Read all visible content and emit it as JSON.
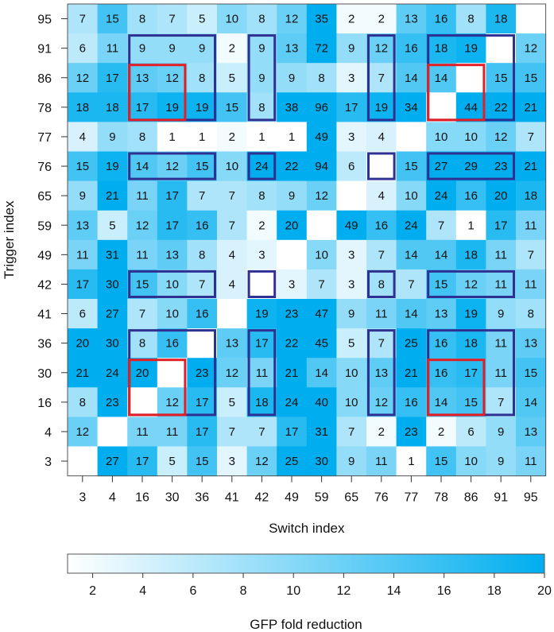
{
  "chart_data": {
    "type": "heatmap",
    "xlabel": "Switch index",
    "ylabel": "Trigger index",
    "x_categories": [
      "3",
      "4",
      "16",
      "30",
      "36",
      "41",
      "42",
      "49",
      "59",
      "65",
      "76",
      "77",
      "78",
      "86",
      "91",
      "95"
    ],
    "y_categories": [
      "95",
      "91",
      "86",
      "78",
      "77",
      "76",
      "65",
      "59",
      "49",
      "42",
      "41",
      "36",
      "30",
      "16",
      "4",
      "3"
    ],
    "values": [
      [
        7,
        15,
        8,
        7,
        5,
        10,
        8,
        12,
        35,
        2,
        2,
        13,
        16,
        8,
        18,
        null
      ],
      [
        6,
        11,
        9,
        9,
        9,
        2,
        9,
        13,
        72,
        9,
        12,
        16,
        18,
        19,
        null,
        12
      ],
      [
        12,
        17,
        13,
        12,
        8,
        5,
        9,
        9,
        8,
        3,
        7,
        14,
        14,
        null,
        15,
        15
      ],
      [
        18,
        18,
        17,
        19,
        19,
        15,
        8,
        38,
        96,
        17,
        19,
        34,
        null,
        44,
        22,
        21
      ],
      [
        4,
        9,
        8,
        1,
        1,
        2,
        1,
        1,
        49,
        3,
        4,
        null,
        10,
        10,
        12,
        7
      ],
      [
        15,
        19,
        14,
        12,
        15,
        10,
        24,
        22,
        94,
        6,
        null,
        15,
        27,
        29,
        23,
        21
      ],
      [
        9,
        21,
        11,
        17,
        7,
        7,
        8,
        9,
        12,
        null,
        4,
        10,
        24,
        16,
        20,
        18
      ],
      [
        13,
        5,
        12,
        17,
        16,
        7,
        2,
        20,
        null,
        49,
        16,
        24,
        7,
        1,
        17,
        11
      ],
      [
        11,
        31,
        11,
        13,
        8,
        4,
        3,
        null,
        10,
        3,
        7,
        14,
        14,
        18,
        11,
        7
      ],
      [
        17,
        30,
        15,
        10,
        7,
        4,
        null,
        3,
        7,
        3,
        8,
        7,
        15,
        12,
        11,
        11
      ],
      [
        6,
        27,
        7,
        10,
        16,
        null,
        19,
        23,
        47,
        9,
        11,
        14,
        13,
        19,
        9,
        8
      ],
      [
        20,
        30,
        8,
        16,
        null,
        13,
        17,
        22,
        45,
        5,
        7,
        25,
        16,
        18,
        11,
        13
      ],
      [
        21,
        24,
        20,
        null,
        23,
        12,
        11,
        21,
        14,
        10,
        13,
        21,
        16,
        17,
        11,
        15
      ],
      [
        8,
        23,
        null,
        12,
        17,
        5,
        18,
        24,
        40,
        10,
        12,
        16,
        14,
        15,
        7,
        14
      ],
      [
        12,
        null,
        11,
        11,
        17,
        7,
        7,
        17,
        31,
        7,
        2,
        23,
        2,
        6,
        9,
        13
      ],
      [
        null,
        27,
        17,
        5,
        15,
        3,
        12,
        25,
        30,
        9,
        11,
        1,
        15,
        10,
        9,
        11
      ]
    ],
    "color_scale": {
      "min": 1,
      "max": 20,
      "low_color": "#ffffff",
      "high_color": "#00aeef"
    },
    "colorbar": {
      "title": "GFP fold reduction",
      "ticks": [
        "2",
        "4",
        "6",
        "8",
        "10",
        "12",
        "14",
        "16",
        "18",
        "20"
      ]
    },
    "highlight_boxes": [
      {
        "color": "#2e3192",
        "rows": [
          "91",
          "78"
        ],
        "cols": [
          "16",
          "36"
        ]
      },
      {
        "color": "#2e3192",
        "rows": [
          "91",
          "78"
        ],
        "cols": [
          "42",
          "42"
        ]
      },
      {
        "color": "#2e3192",
        "rows": [
          "91",
          "78"
        ],
        "cols": [
          "76",
          "76"
        ]
      },
      {
        "color": "#2e3192",
        "rows": [
          "91",
          "78"
        ],
        "cols": [
          "78",
          "91"
        ]
      },
      {
        "color": "#2e3192",
        "rows": [
          "76",
          "76"
        ],
        "cols": [
          "16",
          "36"
        ]
      },
      {
        "color": "#2e3192",
        "rows": [
          "76",
          "76"
        ],
        "cols": [
          "42",
          "42"
        ]
      },
      {
        "color": "#2e3192",
        "rows": [
          "76",
          "76"
        ],
        "cols": [
          "76",
          "76"
        ]
      },
      {
        "color": "#2e3192",
        "rows": [
          "76",
          "76"
        ],
        "cols": [
          "78",
          "91"
        ]
      },
      {
        "color": "#2e3192",
        "rows": [
          "42",
          "42"
        ],
        "cols": [
          "16",
          "36"
        ]
      },
      {
        "color": "#2e3192",
        "rows": [
          "42",
          "42"
        ],
        "cols": [
          "42",
          "42"
        ]
      },
      {
        "color": "#2e3192",
        "rows": [
          "42",
          "42"
        ],
        "cols": [
          "76",
          "76"
        ]
      },
      {
        "color": "#2e3192",
        "rows": [
          "42",
          "42"
        ],
        "cols": [
          "78",
          "91"
        ]
      },
      {
        "color": "#2e3192",
        "rows": [
          "36",
          "16"
        ],
        "cols": [
          "16",
          "36"
        ]
      },
      {
        "color": "#2e3192",
        "rows": [
          "36",
          "16"
        ],
        "cols": [
          "42",
          "42"
        ]
      },
      {
        "color": "#2e3192",
        "rows": [
          "36",
          "16"
        ],
        "cols": [
          "76",
          "76"
        ]
      },
      {
        "color": "#2e3192",
        "rows": [
          "36",
          "16"
        ],
        "cols": [
          "78",
          "91"
        ]
      },
      {
        "color": "#e31e24",
        "rows": [
          "86",
          "78"
        ],
        "cols": [
          "16",
          "30"
        ]
      },
      {
        "color": "#e31e24",
        "rows": [
          "86",
          "78"
        ],
        "cols": [
          "78",
          "86"
        ]
      },
      {
        "color": "#e31e24",
        "rows": [
          "30",
          "16"
        ],
        "cols": [
          "16",
          "30"
        ]
      },
      {
        "color": "#e31e24",
        "rows": [
          "30",
          "16"
        ],
        "cols": [
          "78",
          "86"
        ]
      }
    ]
  }
}
